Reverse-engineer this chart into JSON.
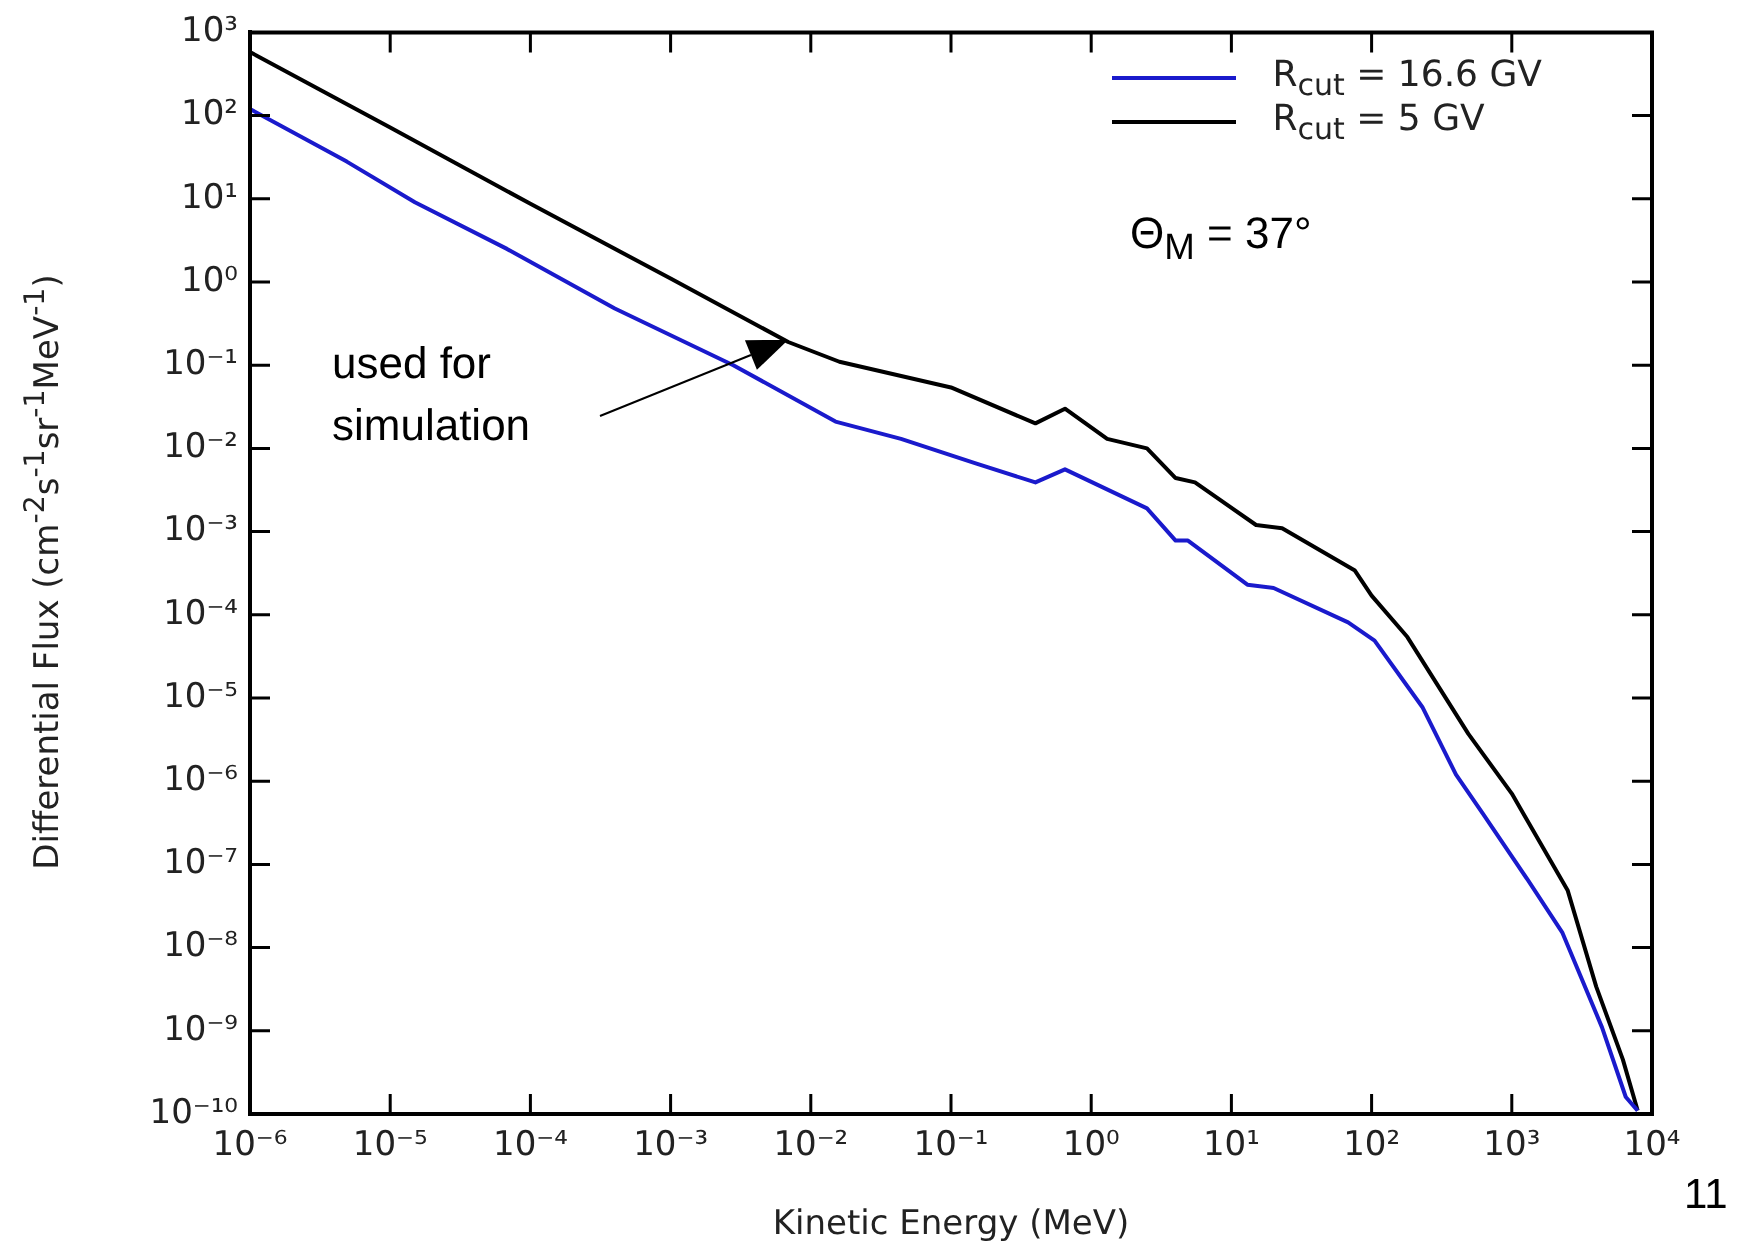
{
  "chart_data": {
    "type": "line",
    "xlabel": "Kinetic Energy (MeV)",
    "ylabel": "Differential Flux (cm$^{-2}$s$^{-1}$sr$^{-1}$MeV$^{-1}$)",
    "log": "xy",
    "xlim": [
      1e-06,
      10000.0
    ],
    "ylim": [
      1e-10,
      1000.0
    ],
    "xticks": [
      {
        "value": 1e-06,
        "label": "10⁻⁶"
      },
      {
        "value": 1e-05,
        "label": "10⁻⁵"
      },
      {
        "value": 0.0001,
        "label": "10⁻⁴"
      },
      {
        "value": 0.001,
        "label": "10⁻³"
      },
      {
        "value": 0.01,
        "label": "10⁻²"
      },
      {
        "value": 0.1,
        "label": "10⁻¹"
      },
      {
        "value": 1,
        "label": "10⁰"
      },
      {
        "value": 10,
        "label": "10¹"
      },
      {
        "value": 100,
        "label": "10²"
      },
      {
        "value": 1000,
        "label": "10³"
      },
      {
        "value": 10000,
        "label": "10⁴"
      }
    ],
    "yticks": [
      {
        "value": 1e-10,
        "label": "10⁻¹⁰"
      },
      {
        "value": 1e-09,
        "label": "10⁻⁹"
      },
      {
        "value": 1e-08,
        "label": "10⁻⁸"
      },
      {
        "value": 1e-07,
        "label": "10⁻⁷"
      },
      {
        "value": 1e-06,
        "label": "10⁻⁶"
      },
      {
        "value": 1e-05,
        "label": "10⁻⁵"
      },
      {
        "value": 0.0001,
        "label": "10⁻⁴"
      },
      {
        "value": 0.001,
        "label": "10⁻³"
      },
      {
        "value": 0.01,
        "label": "10⁻²"
      },
      {
        "value": 0.1,
        "label": "10⁻¹"
      },
      {
        "value": 1,
        "label": "10⁰"
      },
      {
        "value": 10,
        "label": "10¹"
      },
      {
        "value": 100,
        "label": "10²"
      },
      {
        "value": 1000,
        "label": "10³"
      }
    ],
    "grid": false,
    "legend": "top right",
    "marker": "none",
    "line_style": "solid",
    "series": [
      {
        "name": "R$_{cut}$ = 16.6 GV",
        "color": "#1a1acc",
        "x": [
          1e-06,
          4.9e-06,
          1.5e-05,
          6.8e-05,
          0.0004,
          0.0028,
          0.015,
          0.044,
          0.15,
          0.4,
          0.65,
          2.5,
          4.0,
          4.9,
          13,
          20,
          68,
          105,
          230,
          400,
          620,
          1300,
          2300,
          4400,
          6500,
          7900
        ],
        "values": [
          120,
          28,
          9.1,
          2.5,
          0.48,
          0.1,
          0.021,
          0.013,
          0.0066,
          0.0039,
          0.0056,
          0.0019,
          0.00078,
          0.00078,
          0.00023,
          0.00021,
          8.1e-05,
          4.9e-05,
          7.8e-06,
          1.2e-06,
          4.1e-07,
          6.5e-08,
          1.5e-08,
          1.1e-09,
          1.6e-10,
          1.1e-10
        ]
      },
      {
        "name": "R$_{cut}$ = 5 GV",
        "color": "#000000",
        "x": [
          1e-06,
          1e-05,
          0.0001,
          0.001,
          0.0069,
          0.016,
          0.1,
          0.4,
          0.65,
          1.3,
          2.5,
          4.0,
          5.5,
          15,
          23,
          76,
          100,
          180,
          490,
          1000,
          2500,
          4000,
          6200,
          7900
        ],
        "values": [
          580,
          72,
          8.7,
          1.1,
          0.19,
          0.11,
          0.054,
          0.02,
          0.03,
          0.013,
          0.01,
          0.0044,
          0.0039,
          0.0012,
          0.0011,
          0.00034,
          0.00017,
          5.4e-05,
          3.7e-06,
          7.1e-07,
          4.9e-08,
          3.4e-09,
          4.5e-10,
          1.1e-10
        ]
      }
    ],
    "annotations": [
      "used for simulation",
      "Θ$_{M}$ = 37°",
      "11"
    ]
  }
}
